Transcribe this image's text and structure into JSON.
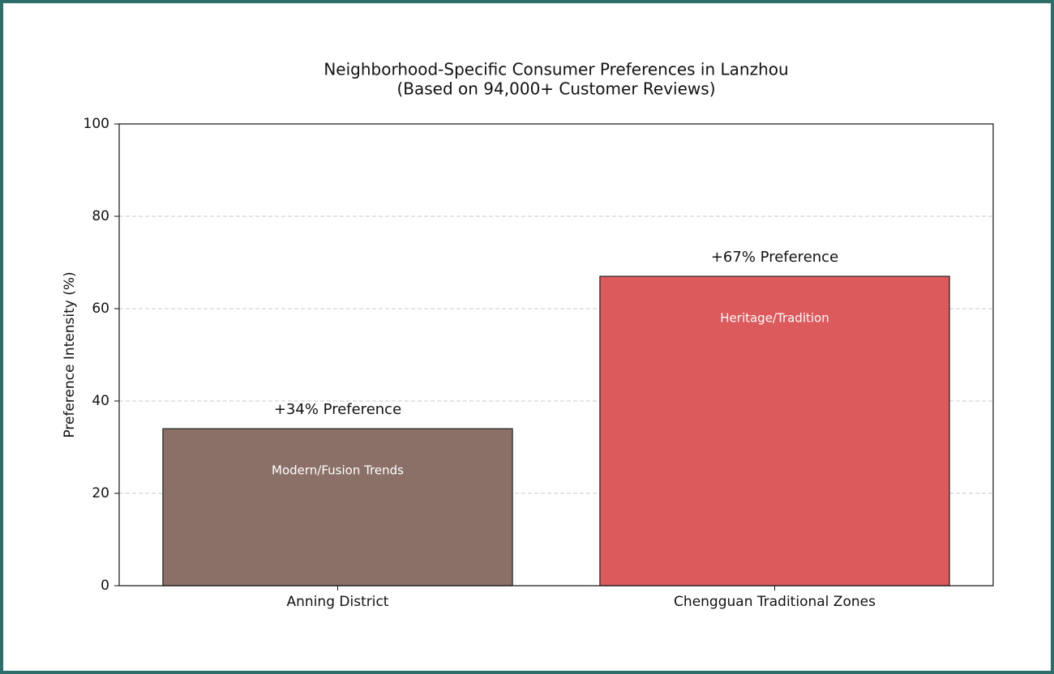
{
  "chart_data": {
    "type": "bar",
    "title": "Neighborhood-Specific Consumer Preferences in Lanzhou",
    "subtitle": "(Based on 94,000+ Customer Reviews)",
    "ylabel": "Preference Intensity (%)",
    "categories": [
      "Anning District",
      "Chengguan Traditional Zones"
    ],
    "values": [
      34,
      67
    ],
    "value_labels": [
      "+34% Preference",
      "+67% Preference"
    ],
    "bar_labels": [
      "Modern/Fusion Trends",
      "Heritage/Tradition"
    ],
    "colors": [
      "#8b7068",
      "#dc5a5c"
    ],
    "ylim": [
      0,
      100
    ],
    "yticks": [
      0,
      20,
      40,
      60,
      80,
      100
    ],
    "grid": true
  }
}
